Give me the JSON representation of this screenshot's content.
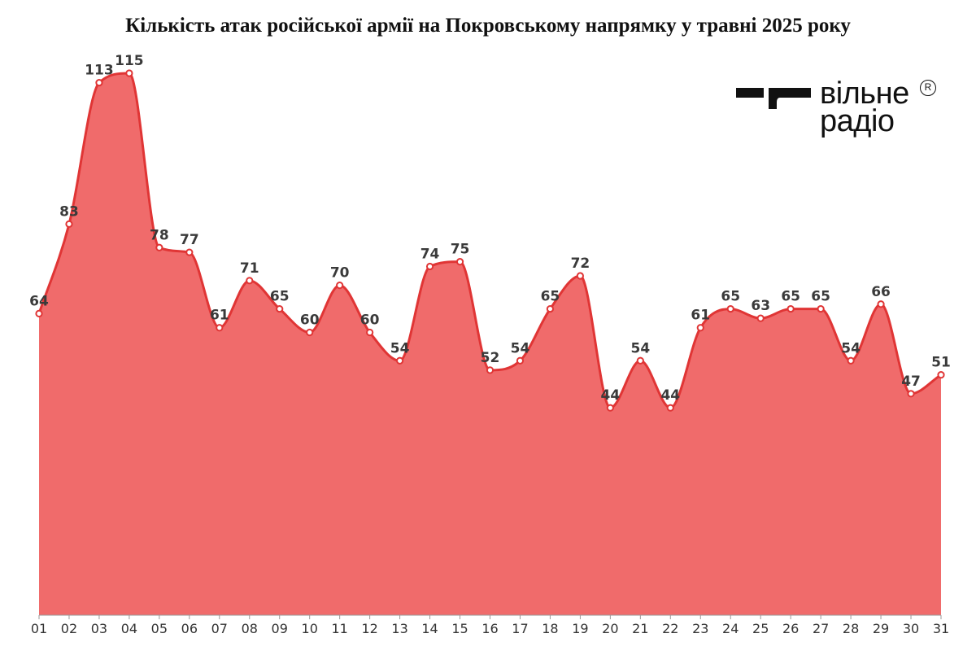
{
  "title": "Кількість атак російської армії на Покровському напрямку у травні 2025 року",
  "logo": {
    "line1": "вільне",
    "line2": "радіо",
    "mark": "R",
    "icon": "vilne-radio-logo-icon"
  },
  "colors": {
    "area": "#f06b6b",
    "line": "#e03535",
    "marker_fill": "#ffffff",
    "axis": "#999999"
  },
  "chart_data": {
    "type": "area",
    "title": "Кількість атак російської армії на Покровському напрямку у травні 2025 року",
    "xlabel": "",
    "ylabel": "",
    "x": [
      "01",
      "02",
      "03",
      "04",
      "05",
      "06",
      "07",
      "08",
      "09",
      "10",
      "11",
      "12",
      "13",
      "14",
      "15",
      "16",
      "17",
      "18",
      "19",
      "20",
      "21",
      "22",
      "23",
      "24",
      "25",
      "26",
      "27",
      "28",
      "29",
      "30",
      "31"
    ],
    "values": [
      64,
      83,
      113,
      115,
      78,
      77,
      61,
      71,
      65,
      60,
      70,
      60,
      54,
      74,
      75,
      52,
      54,
      65,
      72,
      44,
      54,
      44,
      61,
      65,
      63,
      65,
      65,
      54,
      66,
      47,
      51
    ],
    "ylim": [
      0,
      120
    ],
    "grid": false,
    "data_labels": true
  }
}
